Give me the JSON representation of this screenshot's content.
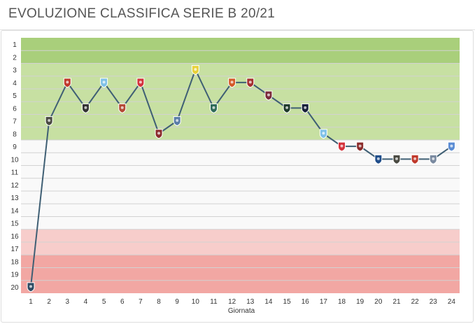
{
  "page": {
    "title": "EVOLUZIONE CLASSIFICA SERIE B 20/21"
  },
  "chart_data": {
    "type": "line",
    "title": "EVOLUZIONE CLASSIFICA SERIE B 20/21",
    "xlabel": "Giornata",
    "ylabel": "",
    "x": [
      1,
      2,
      3,
      4,
      5,
      6,
      7,
      8,
      9,
      10,
      11,
      12,
      13,
      14,
      15,
      16,
      17,
      18,
      19,
      20,
      21,
      22,
      23,
      24
    ],
    "series": [
      {
        "values": [
          20,
          7,
          4,
          6,
          4,
          6,
          4,
          8,
          7,
          3,
          6,
          4,
          4,
          5,
          6,
          6,
          8,
          9,
          9,
          10,
          10,
          10,
          10,
          9
        ]
      }
    ],
    "xlim": [
      1,
      24
    ],
    "ylim": [
      1,
      20
    ],
    "y_reversed": true,
    "y_ticks": [
      "1",
      "2",
      "3",
      "4",
      "5",
      "6",
      "7",
      "8",
      "9",
      "10",
      "11",
      "12",
      "13",
      "14",
      "15",
      "16",
      "17",
      "18",
      "19",
      "20"
    ],
    "x_ticks": [
      "1",
      "2",
      "3",
      "4",
      "5",
      "6",
      "7",
      "8",
      "9",
      "10",
      "11",
      "12",
      "13",
      "14",
      "15",
      "16",
      "17",
      "18",
      "19",
      "20",
      "21",
      "22",
      "23",
      "24"
    ],
    "bands": [
      {
        "from": 1,
        "to": 2,
        "color": "#a9cf7b"
      },
      {
        "from": 3,
        "to": 8,
        "color": "#c7e0a2"
      },
      {
        "from": 9,
        "to": 15,
        "color": "#f9f9f9"
      },
      {
        "from": 16,
        "to": 17,
        "color": "#f7cdcb"
      },
      {
        "from": 18,
        "to": 20,
        "color": "#f2a7a3"
      }
    ],
    "line_color": "#3f5f74",
    "markers": [
      "#2d4b63",
      "#4a4a42",
      "#c0392b",
      "#333333",
      "#7fc1e8",
      "#b44a35",
      "#d4323c",
      "#8b2c2c",
      "#5a7da8",
      "#e8d23a",
      "#2f6b59",
      "#d45a2a",
      "#a5302f",
      "#7a2b3a",
      "#1e3a2a",
      "#16203a",
      "#7fc1e8",
      "#d4323c",
      "#8b2c2c",
      "#1f4d8a",
      "#4a4a42",
      "#c0392b",
      "#7a8aa0",
      "#5a8cd4"
    ],
    "grid": true
  }
}
